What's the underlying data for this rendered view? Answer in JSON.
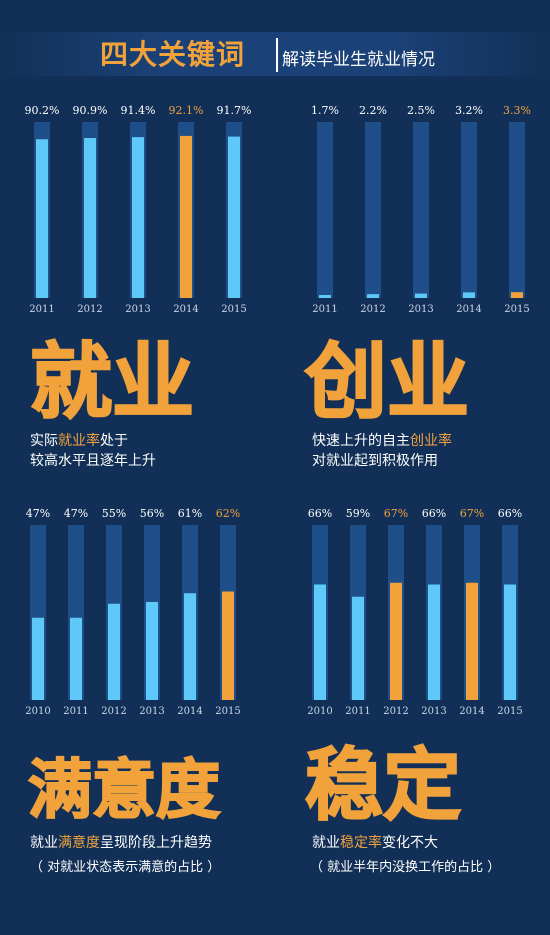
{
  "header": {
    "title_main": "四大关键词",
    "title_sub": "解读毕业生就业情况"
  },
  "colors": {
    "background": "#123057",
    "track": "#1f4f88",
    "fill": "#5ec8f8",
    "highlight": "#f1a23b",
    "text": "#ffffff"
  },
  "chart_data": [
    {
      "id": "employment",
      "type": "bar",
      "categories": [
        "2011",
        "2012",
        "2013",
        "2014",
        "2015"
      ],
      "values": [
        90.2,
        90.9,
        91.4,
        92.1,
        91.7
      ],
      "labels": [
        "90.2%",
        "90.9%",
        "91.4%",
        "92.1%",
        "91.7%"
      ],
      "highlight_index": 3,
      "ylim": [
        0,
        100
      ],
      "keyword": "就业",
      "caption_parts": [
        "实际",
        "就业率",
        "处于"
      ],
      "caption_line2": "较高水平且逐年上升",
      "note": ""
    },
    {
      "id": "entrepreneurship",
      "type": "bar",
      "categories": [
        "2011",
        "2012",
        "2013",
        "2014",
        "2015"
      ],
      "values": [
        1.7,
        2.2,
        2.5,
        3.2,
        3.3
      ],
      "labels": [
        "1.7%",
        "2.2%",
        "2.5%",
        "3.2%",
        "3.3%"
      ],
      "highlight_index": 4,
      "ylim": [
        0,
        100
      ],
      "keyword": "创业",
      "caption_parts": [
        "快速上升的自主",
        "创业率",
        ""
      ],
      "caption_line2": "对就业起到积极作用",
      "note": ""
    },
    {
      "id": "satisfaction",
      "type": "bar",
      "categories": [
        "2010",
        "2011",
        "2012",
        "2013",
        "2014",
        "2015"
      ],
      "values": [
        47,
        47,
        55,
        56,
        61,
        62
      ],
      "labels": [
        "47%",
        "47%",
        "55%",
        "56%",
        "61%",
        "62%"
      ],
      "highlight_index": 5,
      "ylim": [
        0,
        100
      ],
      "keyword": "满意度",
      "caption_parts": [
        "就业",
        "满意度",
        "呈现阶段上升趋势"
      ],
      "caption_line2": "",
      "note": "（ 对就业状态表示满意的占比 ）"
    },
    {
      "id": "stability",
      "type": "bar",
      "categories": [
        "2010",
        "2011",
        "2012",
        "2013",
        "2014",
        "2015"
      ],
      "values": [
        66,
        59,
        67,
        66,
        67,
        66
      ],
      "labels": [
        "66%",
        "59%",
        "67%",
        "66%",
        "67%",
        "66%"
      ],
      "highlight_indices": [
        2,
        4
      ],
      "ylim": [
        0,
        100
      ],
      "keyword": "稳定",
      "caption_parts": [
        "就业",
        "稳定率",
        "变化不大"
      ],
      "caption_line2": "",
      "note": "（ 就业半年内没换工作的占比 ）"
    }
  ]
}
